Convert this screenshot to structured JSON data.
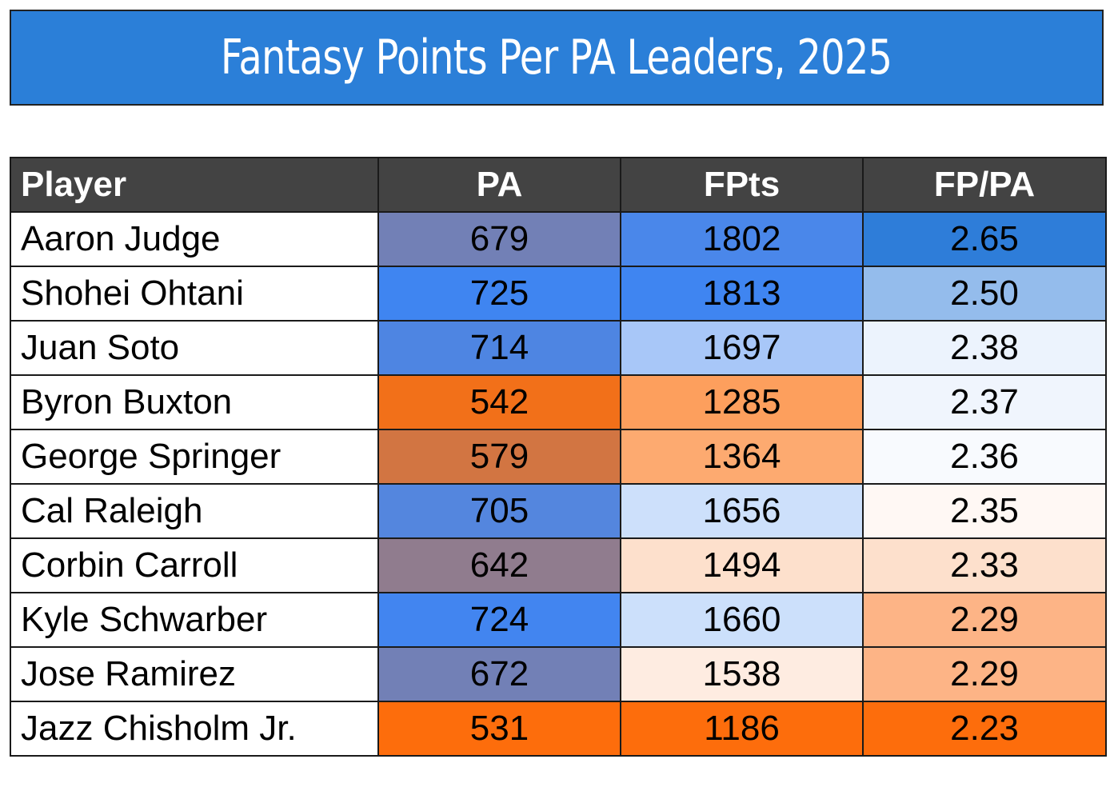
{
  "title": "Fantasy Points Per PA Leaders, 2025",
  "chart_data": {
    "type": "table",
    "columns": [
      "Player",
      "PA",
      "FPts",
      "FP/PA"
    ],
    "rows": [
      {
        "player": "Aaron Judge",
        "pa": "679",
        "fpts": "1802",
        "fppa": "2.65",
        "colors": [
          "#7280b6",
          "#4a87ea",
          "#2e7dd9"
        ]
      },
      {
        "player": "Shohei Ohtani",
        "pa": "725",
        "fpts": "1813",
        "fppa": "2.50",
        "colors": [
          "#3f85f1",
          "#3f85f1",
          "#94bcec"
        ]
      },
      {
        "player": "Juan Soto",
        "pa": "714",
        "fpts": "1697",
        "fppa": "2.38",
        "colors": [
          "#4e85e2",
          "#a8c7f8",
          "#ecf3fd"
        ]
      },
      {
        "player": "Byron Buxton",
        "pa": "542",
        "fpts": "1285",
        "fppa": "2.37",
        "colors": [
          "#f27019",
          "#fd9f5d",
          "#f0f5fd"
        ]
      },
      {
        "player": "George Springer",
        "pa": "579",
        "fpts": "1364",
        "fppa": "2.36",
        "colors": [
          "#d27542",
          "#fdaa70",
          "#f8fafe"
        ]
      },
      {
        "player": "Cal Raleigh",
        "pa": "705",
        "fpts": "1656",
        "fppa": "2.35",
        "colors": [
          "#5486de",
          "#cde0fb",
          "#fff8f4"
        ]
      },
      {
        "player": "Corbin Carroll",
        "pa": "642",
        "fpts": "1494",
        "fppa": "2.33",
        "colors": [
          "#907c8e",
          "#fde0cc",
          "#fde0cc"
        ]
      },
      {
        "player": "Kyle Schwarber",
        "pa": "724",
        "fpts": "1660",
        "fppa": "2.29",
        "colors": [
          "#4285f0",
          "#cce0fb",
          "#fdb486"
        ]
      },
      {
        "player": "Jose Ramirez",
        "pa": "672",
        "fpts": "1538",
        "fppa": "2.29",
        "colors": [
          "#7280b6",
          "#feece1",
          "#fdb486"
        ]
      },
      {
        "player": "Jazz Chisholm Jr.",
        "pa": "531",
        "fpts": "1186",
        "fppa": "2.23",
        "colors": [
          "#fd6d0c",
          "#fd6d0c",
          "#fd6d0c"
        ]
      }
    ]
  }
}
